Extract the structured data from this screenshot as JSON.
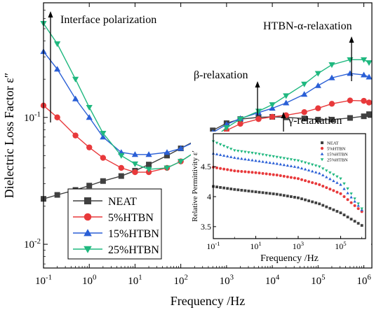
{
  "chart_data": [
    {
      "type": "scatter",
      "title": "",
      "xlabel": "Frequency /Hz",
      "ylabel": "Dielectric Loss Factor ε″",
      "xscale": "log",
      "yscale": "log",
      "xlim": [
        0.1,
        1500000
      ],
      "ylim": [
        0.0065,
        0.8
      ],
      "xticks": [
        "10-1",
        "100",
        "101",
        "102",
        "103",
        "104",
        "105",
        "106"
      ],
      "yticks": [
        "10-2",
        "10-1"
      ],
      "legend_position": "bottom-left",
      "series": [
        {
          "name": "NEAT",
          "color": "#404040",
          "marker": "square",
          "points": [
            [
              0.1,
              0.0228
            ],
            [
              0.2,
              0.0245
            ],
            [
              0.5,
              0.0268
            ],
            [
              1,
              0.029
            ],
            [
              2,
              0.0315
            ],
            [
              5,
              0.0345
            ],
            [
              10,
              0.038
            ],
            [
              20,
              0.0425
            ],
            [
              50,
              0.05
            ],
            [
              100,
              0.057
            ],
            [
              200,
              0.065
            ],
            [
              500,
              0.079
            ],
            [
              1000,
              0.09
            ],
            [
              2000,
              0.097
            ],
            [
              5000,
              0.1
            ],
            [
              10000,
              0.101
            ],
            [
              20000,
              0.1
            ],
            [
              50000,
              0.098
            ],
            [
              100000,
              0.096
            ],
            [
              200000,
              0.096
            ],
            [
              500000,
              0.099
            ],
            [
              1000000,
              0.102
            ],
            [
              1300000,
              0.106
            ]
          ]
        },
        {
          "name": "5%HTBN",
          "color": "#e8393b",
          "marker": "circle",
          "points": [
            [
              0.1,
              0.124
            ],
            [
              0.2,
              0.1
            ],
            [
              0.5,
              0.072
            ],
            [
              1,
              0.058
            ],
            [
              2,
              0.048
            ],
            [
              5,
              0.04
            ],
            [
              10,
              0.037
            ],
            [
              20,
              0.037
            ],
            [
              50,
              0.04
            ],
            [
              100,
              0.045
            ],
            [
              200,
              0.053
            ],
            [
              500,
              0.067
            ],
            [
              1000,
              0.079
            ],
            [
              2000,
              0.089
            ],
            [
              5000,
              0.097
            ],
            [
              10000,
              0.101
            ],
            [
              20000,
              0.104
            ],
            [
              50000,
              0.11
            ],
            [
              100000,
              0.118
            ],
            [
              200000,
              0.128
            ],
            [
              500000,
              0.136
            ],
            [
              1000000,
              0.135
            ],
            [
              1300000,
              0.131
            ]
          ]
        },
        {
          "name": "15%HTBN",
          "color": "#2a5fd6",
          "marker": "triangle-up",
          "points": [
            [
              0.1,
              0.33
            ],
            [
              0.2,
              0.24
            ],
            [
              0.5,
              0.14
            ],
            [
              1,
              0.1
            ],
            [
              2,
              0.07
            ],
            [
              5,
              0.053
            ],
            [
              10,
              0.051
            ],
            [
              20,
              0.051
            ],
            [
              50,
              0.053
            ],
            [
              100,
              0.057
            ],
            [
              200,
              0.064
            ],
            [
              500,
              0.076
            ],
            [
              1000,
              0.088
            ],
            [
              2000,
              0.098
            ],
            [
              5000,
              0.109
            ],
            [
              10000,
              0.118
            ],
            [
              20000,
              0.13
            ],
            [
              50000,
              0.152
            ],
            [
              100000,
              0.178
            ],
            [
              200000,
              0.205
            ],
            [
              500000,
              0.222
            ],
            [
              1000000,
              0.216
            ],
            [
              1300000,
              0.208
            ]
          ]
        },
        {
          "name": "25%HTBN",
          "color": "#1fb87f",
          "marker": "triangle-down",
          "points": [
            [
              0.1,
              0.55
            ],
            [
              0.2,
              0.38
            ],
            [
              0.5,
              0.2
            ],
            [
              1,
              0.12
            ],
            [
              2,
              0.075
            ],
            [
              5,
              0.05
            ],
            [
              10,
              0.043
            ],
            [
              20,
              0.039
            ],
            [
              50,
              0.04
            ],
            [
              100,
              0.045
            ],
            [
              200,
              0.053
            ],
            [
              500,
              0.068
            ],
            [
              1000,
              0.083
            ],
            [
              2000,
              0.097
            ],
            [
              5000,
              0.112
            ],
            [
              10000,
              0.126
            ],
            [
              20000,
              0.148
            ],
            [
              50000,
              0.183
            ],
            [
              100000,
              0.222
            ],
            [
              200000,
              0.26
            ],
            [
              500000,
              0.285
            ],
            [
              1000000,
              0.285
            ],
            [
              1300000,
              0.27
            ]
          ]
        }
      ],
      "annotations": [
        {
          "text": "Interface polarization"
        },
        {
          "text": "HTBN-α-relaxation"
        },
        {
          "text": "β-relaxation"
        },
        {
          "text": "γ-relaxation"
        }
      ]
    },
    {
      "type": "scatter",
      "title": "",
      "xlabel": "Frequency /Hz",
      "ylabel": "Relative Permittivity ε′",
      "xscale": "log",
      "yscale": "linear",
      "xlim": [
        0.1,
        1500000
      ],
      "ylim": [
        3.3,
        5.05
      ],
      "xticks": [
        "10-1",
        "101",
        "103",
        "105"
      ],
      "yticks": [
        "3.5",
        "4",
        "4.5"
      ],
      "legend_position": "top-right",
      "series": [
        {
          "name": "NEAT",
          "color": "#404040",
          "marker": "square",
          "points": [
            [
              0.1,
              4.17
            ],
            [
              1,
              4.12
            ],
            [
              10,
              4.08
            ],
            [
              100,
              4.04
            ],
            [
              1000,
              3.98
            ],
            [
              10000,
              3.88
            ],
            [
              100000,
              3.73
            ],
            [
              1000000,
              3.52
            ]
          ]
        },
        {
          "name": "5%HTBN",
          "color": "#e8393b",
          "marker": "circle",
          "points": [
            [
              0.1,
              4.49
            ],
            [
              1,
              4.43
            ],
            [
              10,
              4.4
            ],
            [
              100,
              4.36
            ],
            [
              1000,
              4.3
            ],
            [
              10000,
              4.2
            ],
            [
              100000,
              4.05
            ],
            [
              1000000,
              3.75
            ]
          ]
        },
        {
          "name": "15%HTBN",
          "color": "#2a5fd6",
          "marker": "triangle-up",
          "points": [
            [
              0.1,
              4.72
            ],
            [
              1,
              4.65
            ],
            [
              10,
              4.6
            ],
            [
              100,
              4.55
            ],
            [
              1000,
              4.49
            ],
            [
              10000,
              4.39
            ],
            [
              100000,
              4.2
            ],
            [
              1000000,
              3.78
            ]
          ]
        },
        {
          "name": "25%HTBN",
          "color": "#1fb87f",
          "marker": "triangle-down",
          "points": [
            [
              0.1,
              4.92
            ],
            [
              1,
              4.77
            ],
            [
              10,
              4.72
            ],
            [
              100,
              4.66
            ],
            [
              1000,
              4.6
            ],
            [
              10000,
              4.5
            ],
            [
              100000,
              4.3
            ],
            [
              1000000,
              3.8
            ]
          ]
        }
      ]
    }
  ]
}
